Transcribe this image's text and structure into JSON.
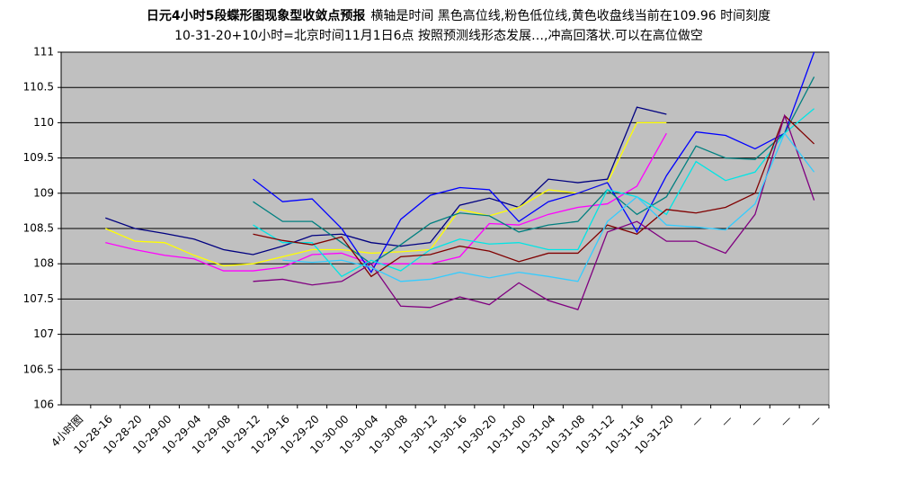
{
  "chart_data": {
    "type": "line",
    "title": "日元4小时5段蝶形图现象型收敛点预报",
    "title_note": "横轴是时间 黑色高位线,粉色低位线,黄色收盘线当前在109.96 时间刻度",
    "subtitle": "10-31-20+10小时=北京时间11月1日6点  按照预测线形态发展…,冲高回落状.可以在高位做空",
    "categories": [
      "4小时图",
      "10-28-16",
      "10-28-20",
      "10-29-00",
      "10-29-04",
      "10-29-08",
      "10-29-12",
      "10-29-16",
      "10-29-20",
      "10-30-00",
      "10-30-04",
      "10-30-08",
      "10-30-12",
      "10-30-16",
      "10-30-20",
      "10-31-00",
      "10-31-04",
      "10-31-08",
      "10-31-12",
      "10-31-16",
      "10-31-20",
      "—",
      "—",
      "—",
      "—",
      "—"
    ],
    "ylim": [
      106,
      111
    ],
    "yticks": [
      106,
      106.5,
      107,
      107.5,
      108,
      108.5,
      109,
      109.5,
      110,
      110.5,
      111
    ],
    "grid": true,
    "series": [
      {
        "color": "#000080",
        "values": [
          null,
          108.65,
          108.5,
          108.43,
          108.35,
          108.2,
          108.13,
          108.25,
          108.4,
          108.42,
          108.3,
          108.25,
          108.3,
          108.83,
          108.93,
          108.8,
          109.2,
          109.15,
          109.2,
          110.22,
          110.12,
          null,
          null,
          null,
          null,
          null
        ]
      },
      {
        "color": "#ffff00",
        "values": [
          null,
          108.5,
          108.32,
          108.3,
          108.12,
          107.97,
          108.0,
          108.1,
          108.2,
          108.2,
          108.15,
          108.17,
          108.2,
          108.77,
          108.68,
          108.8,
          109.05,
          109.0,
          109.15,
          110.0,
          110.0,
          null,
          null,
          null,
          null,
          null
        ]
      },
      {
        "color": "#ff00ff",
        "values": [
          null,
          108.3,
          108.2,
          108.12,
          108.07,
          107.9,
          107.9,
          107.95,
          108.13,
          108.15,
          108.0,
          108.0,
          108.0,
          108.1,
          108.57,
          108.55,
          108.7,
          108.8,
          108.85,
          109.1,
          109.85,
          null,
          null,
          null,
          null,
          null
        ]
      },
      {
        "color": "#0000ff",
        "values": [
          null,
          null,
          null,
          null,
          null,
          null,
          109.2,
          108.88,
          108.92,
          108.5,
          107.88,
          108.63,
          108.97,
          109.08,
          109.05,
          108.6,
          108.88,
          109.0,
          109.15,
          108.45,
          109.25,
          109.87,
          109.82,
          109.63,
          109.85,
          111.0
        ]
      },
      {
        "color": "#008080",
        "values": [
          null,
          null,
          null,
          null,
          null,
          null,
          108.88,
          108.6,
          108.6,
          108.3,
          108.0,
          108.27,
          108.57,
          108.72,
          108.68,
          108.45,
          108.55,
          108.6,
          109.05,
          108.7,
          108.95,
          109.67,
          109.5,
          109.48,
          109.85,
          110.65
        ]
      },
      {
        "color": "#00e5e5",
        "values": [
          null,
          null,
          null,
          null,
          null,
          null,
          108.55,
          108.3,
          108.3,
          107.82,
          108.05,
          107.9,
          108.2,
          108.35,
          108.28,
          108.3,
          108.2,
          108.2,
          109.05,
          108.95,
          108.7,
          109.45,
          109.18,
          109.3,
          109.85,
          110.2
        ]
      },
      {
        "color": "#800000",
        "values": [
          null,
          null,
          null,
          null,
          null,
          null,
          108.42,
          108.33,
          108.27,
          108.38,
          107.82,
          108.1,
          108.13,
          108.25,
          108.18,
          108.03,
          108.15,
          108.15,
          108.55,
          108.42,
          108.77,
          108.72,
          108.8,
          109.0,
          110.1,
          109.7
        ]
      },
      {
        "color": "#800080",
        "values": [
          null,
          null,
          null,
          null,
          null,
          null,
          107.75,
          107.78,
          107.7,
          107.75,
          108.0,
          107.4,
          107.38,
          107.53,
          107.42,
          107.73,
          107.48,
          107.35,
          108.45,
          108.6,
          108.32,
          108.32,
          108.15,
          108.7,
          110.1,
          108.9
        ]
      },
      {
        "color": "#33ccff",
        "values": [
          null,
          null,
          null,
          null,
          null,
          null,
          null,
          108.05,
          108.02,
          108.05,
          107.95,
          107.75,
          107.78,
          107.88,
          107.8,
          107.88,
          107.82,
          107.75,
          108.6,
          108.95,
          108.55,
          108.52,
          108.48,
          108.85,
          109.85,
          109.3
        ]
      }
    ]
  }
}
